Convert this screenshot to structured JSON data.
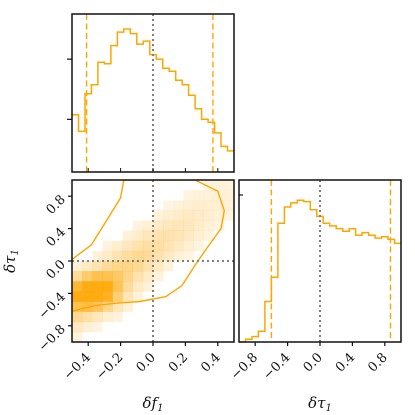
{
  "chart_data": {
    "type": "corner",
    "colors": {
      "main": "#ffa500",
      "reference": "#808080",
      "axis": "#111111"
    },
    "parameters": [
      {
        "key": "df1",
        "label": "δf₁",
        "label_base": "δf",
        "label_sub": "1",
        "range": [
          -0.5,
          0.5
        ],
        "ticks": [
          -0.4,
          -0.2,
          0.0,
          0.2,
          0.4
        ],
        "tick_labels": [
          "−0.4",
          "−0.2",
          "0.0",
          "0.2",
          "0.4"
        ]
      },
      {
        "key": "dtau1",
        "label": "δτ₁",
        "label_base": "δτ",
        "label_sub": "1",
        "range": [
          -1.0,
          1.0
        ],
        "ticks": [
          -0.8,
          -0.4,
          0.0,
          0.4,
          0.8
        ],
        "tick_labels": [
          "−0.8",
          "−0.4",
          "0.0",
          "0.4",
          "0.8"
        ]
      }
    ],
    "marginals": [
      {
        "param": "df1",
        "type": "step-histogram",
        "bin_edges": [
          -0.5,
          -0.46,
          -0.42,
          -0.38,
          -0.34,
          -0.3,
          -0.26,
          -0.22,
          -0.18,
          -0.14,
          -0.1,
          -0.06,
          -0.02,
          0.02,
          0.06,
          0.1,
          0.14,
          0.18,
          0.22,
          0.26,
          0.3,
          0.34,
          0.38,
          0.42,
          0.46,
          0.5
        ],
        "values": [
          0.38,
          0.27,
          0.52,
          0.58,
          0.73,
          0.72,
          0.84,
          0.93,
          0.95,
          0.92,
          0.85,
          0.87,
          0.78,
          0.75,
          0.69,
          0.67,
          0.61,
          0.58,
          0.51,
          0.42,
          0.35,
          0.33,
          0.26,
          0.17,
          0.14
        ],
        "ylim": [
          0,
          1.05
        ],
        "quantiles": [
          -0.41,
          0.37
        ],
        "reference": 0.0
      },
      {
        "param": "dtau1",
        "type": "step-histogram",
        "bin_edges": [
          -1.0,
          -0.92,
          -0.84,
          -0.76,
          -0.68,
          -0.6,
          -0.52,
          -0.44,
          -0.36,
          -0.28,
          -0.2,
          -0.12,
          -0.04,
          0.04,
          0.12,
          0.2,
          0.28,
          0.36,
          0.44,
          0.52,
          0.6,
          0.68,
          0.76,
          0.84,
          0.92,
          1.0
        ],
        "values": [
          0.0,
          0.02,
          0.04,
          0.08,
          0.3,
          0.48,
          0.88,
          1.0,
          1.03,
          1.05,
          1.04,
          0.98,
          0.93,
          0.88,
          0.86,
          0.84,
          0.82,
          0.84,
          0.79,
          0.81,
          0.79,
          0.77,
          0.78,
          0.76,
          0.73
        ],
        "ylim": [
          0,
          1.2
        ],
        "quantiles": [
          -0.6,
          0.87
        ],
        "reference": 0.0
      }
    ],
    "joint": {
      "x": "df1",
      "y": "dtau1",
      "type": "2d-histogram-with-contour",
      "reference": {
        "x": 0.0,
        "y": 0.0
      },
      "density_peak": {
        "x": -0.37,
        "y": -0.38
      }
    },
    "labels": {
      "x_axis": "δf₁",
      "y_axis": "δτ₁",
      "x_axis_marginal": "δτ₁"
    }
  }
}
